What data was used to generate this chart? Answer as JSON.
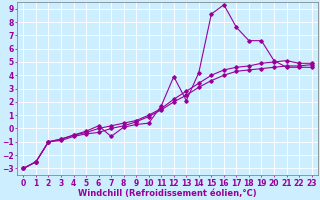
{
  "background_color": "#cceeff",
  "grid_color": "#ffffff",
  "line_color": "#990099",
  "marker": "D",
  "markersize": 1.8,
  "linewidth": 0.8,
  "xlabel": "Windchill (Refroidissement éolien,°C)",
  "xlabel_fontsize": 6.0,
  "tick_fontsize": 5.5,
  "xlim": [
    -0.5,
    23.5
  ],
  "ylim": [
    -3.5,
    9.5
  ],
  "xticks": [
    0,
    1,
    2,
    3,
    4,
    5,
    6,
    7,
    8,
    9,
    10,
    11,
    12,
    13,
    14,
    15,
    16,
    17,
    18,
    19,
    20,
    21,
    22,
    23
  ],
  "yticks": [
    -3,
    -2,
    -1,
    0,
    1,
    2,
    3,
    4,
    5,
    6,
    7,
    8,
    9
  ],
  "x_all": [
    0,
    1,
    2,
    3,
    4,
    5,
    6,
    7,
    8,
    9,
    10,
    11,
    12,
    13,
    14,
    15,
    16,
    17,
    18,
    19,
    20,
    21,
    22,
    23
  ],
  "curve1_y": [
    -3.0,
    -2.5,
    -1.0,
    -0.9,
    -0.6,
    -0.4,
    -0.3,
    0.0,
    0.2,
    0.5,
    0.9,
    1.4,
    2.0,
    2.5,
    3.1,
    3.6,
    4.0,
    4.3,
    4.4,
    4.5,
    4.6,
    4.7,
    4.7,
    4.8
  ],
  "curve2_y": [
    -3.0,
    -2.5,
    -1.0,
    -0.8,
    -0.5,
    -0.3,
    0.0,
    0.2,
    0.4,
    0.6,
    1.0,
    1.5,
    2.2,
    2.8,
    3.4,
    4.0,
    4.4,
    4.6,
    4.7,
    4.9,
    5.0,
    5.1,
    4.9,
    4.9
  ],
  "curve3_y": [
    -3.0,
    -2.5,
    -1.0,
    -0.8,
    -0.5,
    -0.2,
    0.2,
    -0.6,
    0.1,
    0.3,
    0.4,
    1.7,
    3.9,
    2.1,
    4.2,
    8.6,
    9.3,
    7.6,
    6.6,
    6.6,
    5.1,
    4.6,
    4.6,
    4.6
  ]
}
